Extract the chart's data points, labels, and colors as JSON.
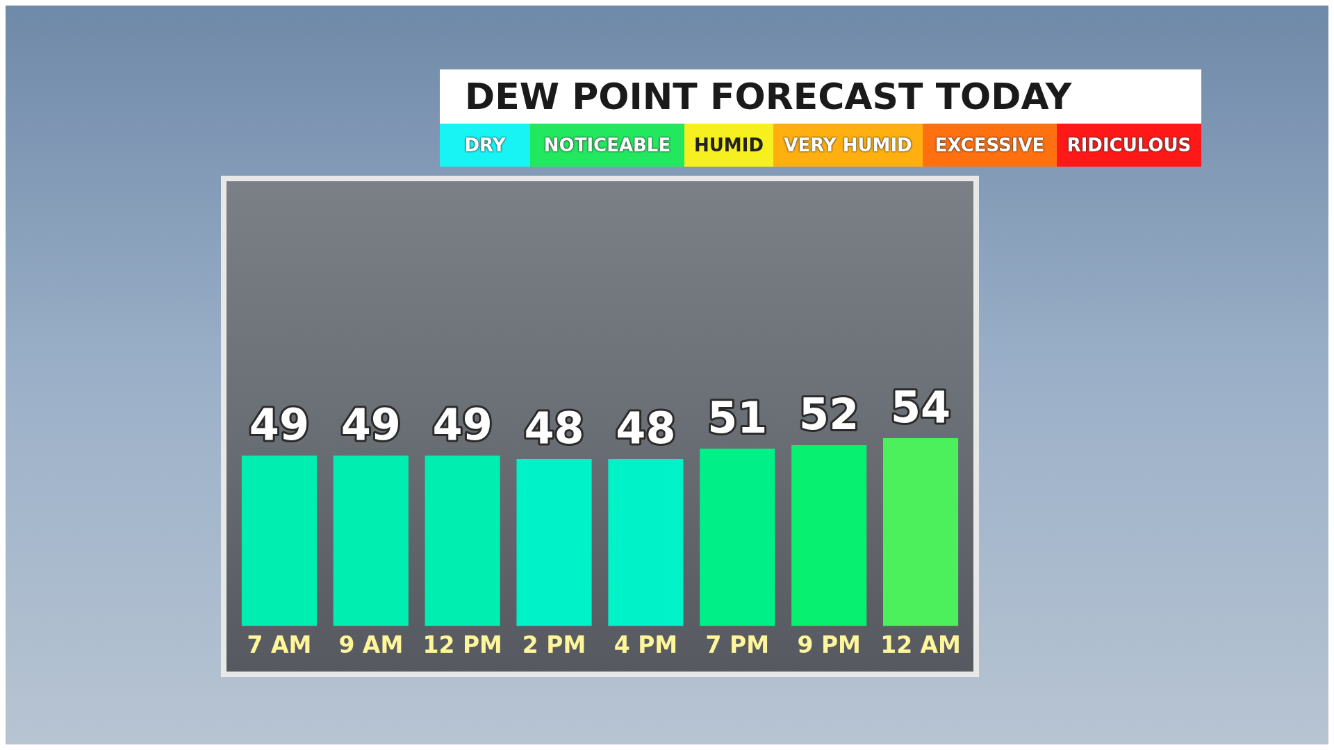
{
  "chart_data": {
    "type": "bar",
    "title": "DEW POINT FORECAST TODAY",
    "annotations": [
      "DRY",
      "NOTICEABLE",
      "HUMID",
      "VERY HUMID",
      "EXCESSIVE",
      "RIDICULOUS"
    ],
    "categories": [
      "7 AM",
      "9 AM",
      "12 PM",
      "2 PM",
      "4 PM",
      "7 PM",
      "9 PM",
      "12 AM"
    ],
    "values": [
      49,
      49,
      49,
      48,
      48,
      51,
      52,
      54
    ],
    "colors": [
      "#00eeb0",
      "#00eeb0",
      "#00eeb0",
      "#00f2c8",
      "#00f2c8",
      "#00f088",
      "#08f070",
      "#4cf05c"
    ],
    "tick_labels": "x",
    "data_labels": true,
    "grid": false,
    "legend": false
  }
}
